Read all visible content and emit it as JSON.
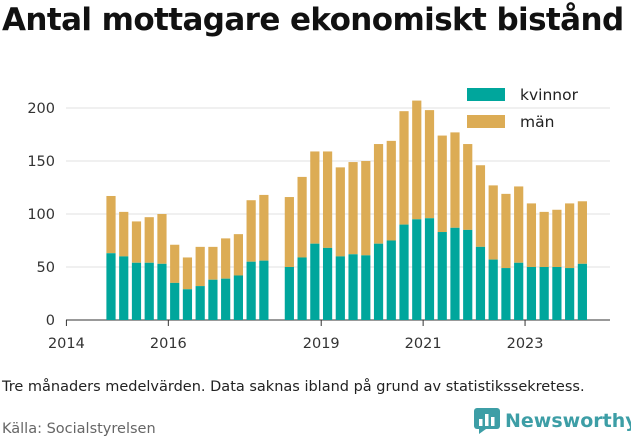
{
  "title": "Antal mottagare ekonomiskt bistånd",
  "note": "Tre månaders medelvärden. Data saknas ibland på grund av statistikssekretess.",
  "source": "Källa: Socialstyrelsen",
  "logo_text": "Newsworthy",
  "colors": {
    "kvinnor": "#00a69c",
    "man": "#dcac55",
    "logo": "#3d9ea6",
    "grid": "#e0e0e0"
  },
  "chart_data": {
    "type": "bar",
    "stacked": true,
    "x_ticks": [
      "2014",
      "2016",
      "2019",
      "2021",
      "2023"
    ],
    "ylim": [
      0,
      210
    ],
    "y_ticks": [
      0,
      50,
      100,
      150,
      200
    ],
    "grid": true,
    "legend_position": "top-right",
    "series": [
      {
        "name": "kvinnor",
        "values": [
          63,
          60,
          54,
          54,
          53,
          35,
          29,
          32,
          38,
          39,
          42,
          55,
          56,
          null,
          50,
          59,
          72,
          68,
          60,
          62,
          61,
          72,
          75,
          90,
          95,
          96,
          83,
          87,
          85,
          69,
          57,
          49,
          54,
          50,
          50,
          50,
          49,
          53
        ]
      },
      {
        "name": "män",
        "values": [
          54,
          42,
          39,
          43,
          47,
          36,
          30,
          37,
          31,
          38,
          39,
          58,
          62,
          null,
          66,
          76,
          87,
          91,
          84,
          87,
          89,
          94,
          94,
          107,
          112,
          102,
          91,
          90,
          81,
          77,
          70,
          70,
          72,
          60,
          52,
          54,
          61,
          59
        ]
      }
    ]
  }
}
